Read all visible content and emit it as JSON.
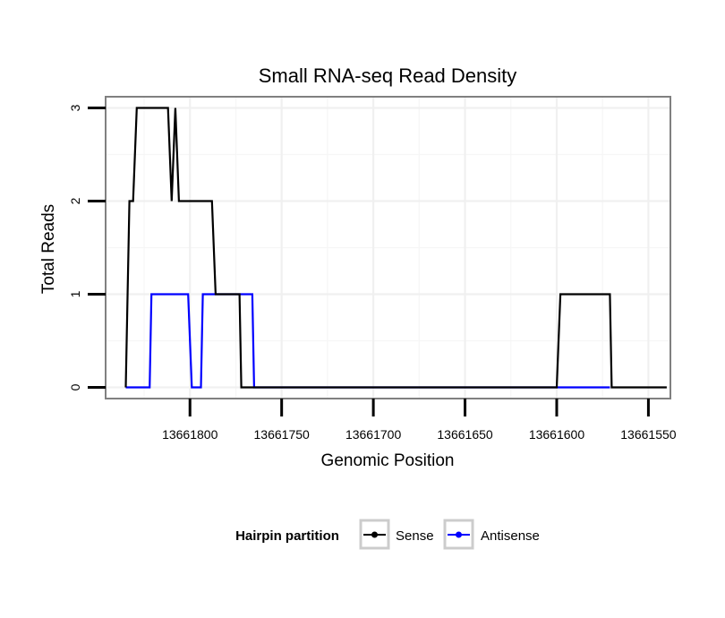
{
  "chart_data": {
    "type": "line",
    "title": "Small RNA-seq Read Density",
    "xlabel": "Genomic Position",
    "ylabel": "Total Reads",
    "x_reversed": true,
    "xlim": [
      13661846,
      13661538
    ],
    "ylim": [
      -0.12,
      3.12
    ],
    "x_ticks": [
      13661800,
      13661750,
      13661700,
      13661650,
      13661600,
      13661550
    ],
    "x_tick_labels": [
      "13661800",
      "13661750",
      "13661700",
      "13661650",
      "13661600",
      "13661550"
    ],
    "y_ticks": [
      0,
      1,
      2,
      3
    ],
    "y_tick_labels": [
      "0",
      "1",
      "2",
      "3"
    ],
    "grid": true,
    "legend": {
      "title": "Hairpin partition",
      "placement": "bottom"
    },
    "series": [
      {
        "name": "Sense",
        "color": "#000000",
        "points": [
          [
            13661835,
            0
          ],
          [
            13661833,
            2
          ],
          [
            13661831,
            2
          ],
          [
            13661829,
            3
          ],
          [
            13661812,
            3
          ],
          [
            13661810,
            2
          ],
          [
            13661808,
            3
          ],
          [
            13661806,
            2
          ],
          [
            13661788,
            2
          ],
          [
            13661786,
            1
          ],
          [
            13661773,
            1
          ],
          [
            13661772,
            0
          ],
          [
            13661600,
            0
          ],
          [
            13661598,
            1
          ],
          [
            13661571,
            1
          ],
          [
            13661570,
            0
          ],
          [
            13661540,
            0
          ]
        ]
      },
      {
        "name": "Antisense",
        "color": "#0000ff",
        "points": [
          [
            13661835,
            0
          ],
          [
            13661822,
            0
          ],
          [
            13661821,
            1
          ],
          [
            13661801,
            1
          ],
          [
            13661799,
            0
          ],
          [
            13661794,
            0
          ],
          [
            13661793,
            1
          ],
          [
            13661766,
            1
          ],
          [
            13661765,
            0
          ],
          [
            13661571,
            0
          ]
        ]
      }
    ]
  }
}
